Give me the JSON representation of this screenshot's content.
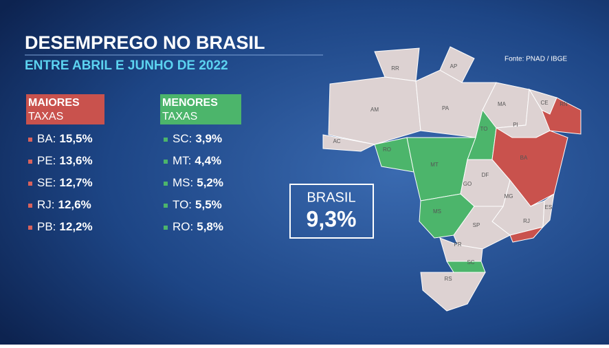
{
  "header": {
    "title": "DESEMPREGO NO BRASIL",
    "subtitle": "ENTRE ABRIL E JUNHO DE 2022",
    "source": "Fonte: PNAD / IBGE"
  },
  "highest": {
    "label": [
      "MAIORES",
      "TAXAS"
    ],
    "items": [
      [
        "BA:",
        "15,5%"
      ],
      [
        "PE:",
        "13,6%"
      ],
      [
        "SE:",
        "12,7%"
      ],
      [
        "RJ:",
        "12,6%"
      ],
      [
        "PB:",
        "12,2%"
      ]
    ]
  },
  "lowest": {
    "label": [
      "MENORES",
      "TAXAS"
    ],
    "items": [
      [
        "SC:",
        "3,9%"
      ],
      [
        "MT:",
        "4,4%"
      ],
      [
        "MS:",
        "5,2%"
      ],
      [
        "TO:",
        "5,5%"
      ],
      [
        "RO:",
        "5,8%"
      ]
    ]
  },
  "national": {
    "label": "BRASIL",
    "value": "9,3%"
  },
  "map": {
    "states": [
      "RR",
      "AP",
      "AM",
      "PA",
      "MA",
      "CE",
      "RN",
      "PI",
      "TO",
      "AC",
      "RO",
      "MT",
      "BA",
      "GO",
      "DF",
      "MG",
      "MS",
      "ES",
      "SP",
      "RJ",
      "PR",
      "SC",
      "RS"
    ]
  }
}
